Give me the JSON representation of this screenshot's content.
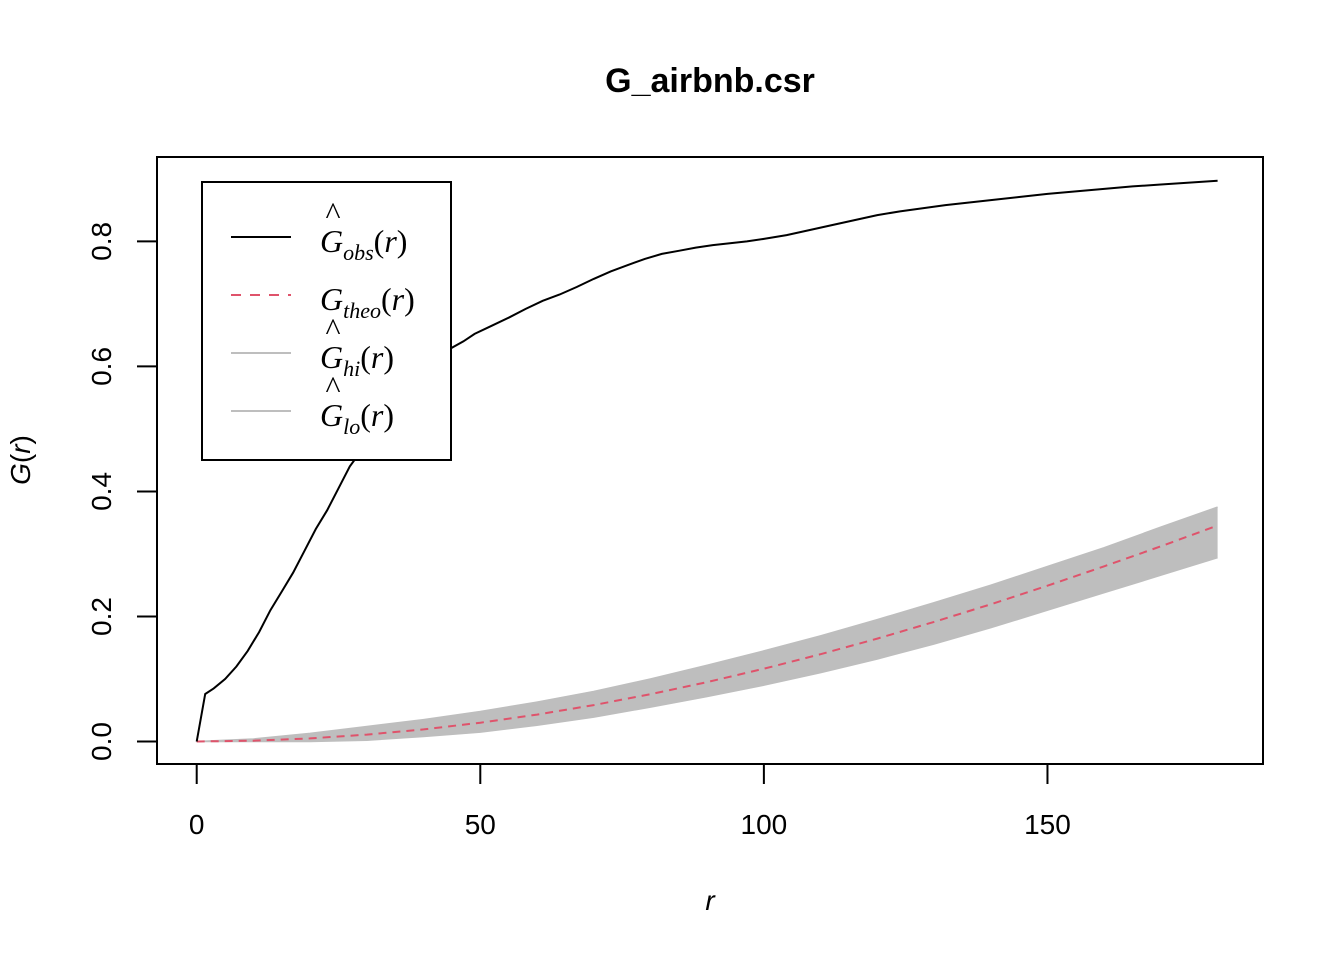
{
  "chart_data": {
    "type": "line",
    "title": "G_airbnb.csr",
    "xlabel": "r",
    "ylabel": "G(r)",
    "ylabel_base": "G",
    "ylabel_arg": "r",
    "xlim": [
      -7,
      188
    ],
    "ylim": [
      -0.036,
      0.935
    ],
    "x_ticks": [
      0,
      50,
      100,
      150
    ],
    "x_tick_labels": [
      "0",
      "50",
      "100",
      "150"
    ],
    "y_ticks": [
      0,
      0.2,
      0.4,
      0.6,
      0.8
    ],
    "y_tick_labels": [
      "0.0",
      "0.2",
      "0.4",
      "0.6",
      "0.8"
    ],
    "legend_position": "top-left",
    "legend": [
      {
        "key": "obs",
        "hat": "^",
        "base": "G",
        "sub": "obs",
        "arg": "r",
        "color": "#000000",
        "dash": "none"
      },
      {
        "key": "theo",
        "hat": "",
        "base": "G",
        "sub": "theo",
        "arg": "r",
        "color": "#DF536B",
        "dash": "10,9"
      },
      {
        "key": "hi",
        "hat": "^",
        "base": "G",
        "sub": "hi",
        "arg": "r",
        "color": "#BEBEBE",
        "dash": "none"
      },
      {
        "key": "lo",
        "hat": "^",
        "base": "G",
        "sub": "lo",
        "arg": "r",
        "color": "#BEBEBE",
        "dash": "none"
      }
    ],
    "series": [
      {
        "name": "obs",
        "color": "#000000",
        "x": [
          0,
          1.5,
          3,
          5,
          7,
          9,
          11,
          13,
          15,
          17,
          19,
          21,
          23,
          25,
          27,
          29,
          31,
          33,
          35,
          37,
          39,
          41,
          43,
          45,
          47,
          49,
          52,
          55,
          58,
          61,
          64,
          67,
          70,
          73,
          76,
          79,
          82,
          85,
          88,
          91,
          94,
          97,
          100,
          104,
          108,
          112,
          116,
          120,
          124,
          128,
          132,
          136,
          140,
          145,
          150,
          155,
          160,
          165,
          170,
          175,
          180
        ],
        "y": [
          0,
          0.076,
          0.085,
          0.1,
          0.12,
          0.145,
          0.175,
          0.21,
          0.24,
          0.27,
          0.305,
          0.34,
          0.37,
          0.405,
          0.44,
          0.465,
          0.495,
          0.525,
          0.545,
          0.565,
          0.585,
          0.6,
          0.615,
          0.63,
          0.64,
          0.652,
          0.665,
          0.678,
          0.692,
          0.705,
          0.715,
          0.727,
          0.74,
          0.752,
          0.762,
          0.772,
          0.78,
          0.785,
          0.79,
          0.794,
          0.797,
          0.8,
          0.804,
          0.81,
          0.818,
          0.826,
          0.834,
          0.842,
          0.848,
          0.853,
          0.858,
          0.862,
          0.866,
          0.871,
          0.876,
          0.88,
          0.884,
          0.888,
          0.891,
          0.894,
          0.897
        ]
      },
      {
        "name": "theo",
        "color": "#DF536B",
        "x": [
          0,
          10,
          20,
          30,
          40,
          50,
          60,
          70,
          80,
          90,
          100,
          110,
          120,
          130,
          140,
          150,
          160,
          170,
          180
        ],
        "y": [
          0,
          0.0012,
          0.0049,
          0.011,
          0.0194,
          0.0301,
          0.0431,
          0.0583,
          0.0756,
          0.095,
          0.1164,
          0.1396,
          0.1646,
          0.1913,
          0.2195,
          0.2492,
          0.2802,
          0.3123,
          0.3455
        ]
      },
      {
        "name": "hi",
        "color": "#BEBEBE",
        "x": [
          0,
          10,
          20,
          30,
          40,
          50,
          60,
          70,
          80,
          90,
          100,
          110,
          120,
          130,
          140,
          150,
          160,
          170,
          180
        ],
        "y": [
          0,
          0.004,
          0.013,
          0.024,
          0.035,
          0.048,
          0.063,
          0.08,
          0.1,
          0.122,
          0.145,
          0.169,
          0.195,
          0.222,
          0.25,
          0.28,
          0.31,
          0.343,
          0.375
        ]
      },
      {
        "name": "lo",
        "color": "#BEBEBE",
        "x": [
          0,
          10,
          20,
          30,
          40,
          50,
          60,
          70,
          80,
          90,
          100,
          110,
          120,
          130,
          140,
          150,
          160,
          170,
          180
        ],
        "y": [
          0,
          0,
          0,
          0.002,
          0.008,
          0.015,
          0.026,
          0.039,
          0.055,
          0.072,
          0.09,
          0.11,
          0.132,
          0.156,
          0.182,
          0.21,
          0.238,
          0.266,
          0.294
        ]
      }
    ]
  }
}
